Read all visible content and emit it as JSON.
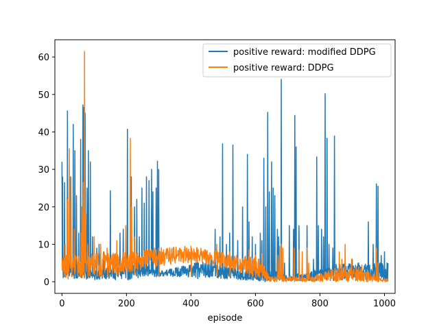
{
  "chart_data": {
    "type": "line",
    "title": "",
    "xlabel": "episode",
    "ylabel": "",
    "xlim": [
      -22,
      1033
    ],
    "ylim": [
      -3.1,
      64.6
    ],
    "xticks": [
      0,
      200,
      400,
      600,
      800,
      1000
    ],
    "yticks": [
      0,
      10,
      20,
      30,
      40,
      50,
      60
    ],
    "legend_position": "top-right",
    "series": [
      {
        "name": "positive reward: modified DDPG",
        "color": "#1f77b4",
        "n_points": 1012,
        "baseline_segments": [
          [
            0,
            1,
            4
          ],
          [
            100,
            0.5,
            3
          ],
          [
            210,
            0.5,
            6
          ],
          [
            310,
            1.5,
            3
          ],
          [
            460,
            1,
            6
          ],
          [
            560,
            0.5,
            3
          ],
          [
            630,
            0,
            4
          ],
          [
            690,
            0.3,
            2
          ],
          [
            760,
            0.2,
            2.5
          ],
          [
            860,
            0.3,
            5
          ],
          [
            1012,
            0.3,
            5
          ]
        ],
        "spikes": [
          [
            0,
            32
          ],
          [
            2,
            28
          ],
          [
            8,
            26.5
          ],
          [
            17,
            45.6
          ],
          [
            25,
            28
          ],
          [
            35,
            42
          ],
          [
            40,
            35
          ],
          [
            45,
            23
          ],
          [
            52,
            13
          ],
          [
            58,
            38
          ],
          [
            65,
            47.2
          ],
          [
            68,
            46.5
          ],
          [
            72,
            45
          ],
          [
            78,
            25
          ],
          [
            82,
            35
          ],
          [
            88,
            32
          ],
          [
            95,
            12
          ],
          [
            100,
            8
          ],
          [
            108,
            9
          ],
          [
            115,
            10
          ],
          [
            130,
            8
          ],
          [
            150,
            24.3
          ],
          [
            180,
            13
          ],
          [
            190,
            14
          ],
          [
            203,
            40.7
          ],
          [
            215,
            28
          ],
          [
            225,
            20
          ],
          [
            232,
            22
          ],
          [
            240,
            12
          ],
          [
            248,
            25
          ],
          [
            255,
            21
          ],
          [
            262,
            28
          ],
          [
            270,
            27
          ],
          [
            278,
            30
          ],
          [
            282,
            24
          ],
          [
            292,
            25
          ],
          [
            296,
            32.2
          ],
          [
            300,
            30
          ],
          [
            420,
            5.5
          ],
          [
            475,
            14
          ],
          [
            490,
            12
          ],
          [
            498,
            36.8
          ],
          [
            510,
            10
          ],
          [
            520,
            13
          ],
          [
            530,
            36.5
          ],
          [
            545,
            11
          ],
          [
            560,
            20
          ],
          [
            575,
            34
          ],
          [
            580,
            16
          ],
          [
            590,
            12
          ],
          [
            600,
            10
          ],
          [
            615,
            13
          ],
          [
            620,
            11
          ],
          [
            626,
            33
          ],
          [
            632,
            20
          ],
          [
            638,
            45.2
          ],
          [
            643,
            24
          ],
          [
            650,
            32
          ],
          [
            655,
            25
          ],
          [
            660,
            23
          ],
          [
            668,
            14
          ],
          [
            672,
            12
          ],
          [
            680,
            54
          ],
          [
            690,
            5
          ],
          [
            705,
            15
          ],
          [
            718,
            14
          ],
          [
            722,
            44.4
          ],
          [
            726,
            36
          ],
          [
            735,
            15
          ],
          [
            760,
            15
          ],
          [
            780,
            6
          ],
          [
            790,
            33.3
          ],
          [
            795,
            15
          ],
          [
            805,
            14
          ],
          [
            811,
            12
          ],
          [
            816,
            50.2
          ],
          [
            822,
            38.3
          ],
          [
            828,
            10
          ],
          [
            840,
            9
          ],
          [
            845,
            38.9
          ],
          [
            900,
            6
          ],
          [
            920,
            5
          ],
          [
            950,
            16
          ],
          [
            965,
            10
          ],
          [
            975,
            26.1
          ],
          [
            980,
            25.5
          ],
          [
            990,
            7
          ],
          [
            1000,
            8
          ],
          [
            1008,
            5
          ]
        ]
      },
      {
        "name": "positive reward: DDPG",
        "color": "#ff7f0e",
        "n_points": 1012,
        "baseline_segments": [
          [
            0,
            0.5,
            7
          ],
          [
            100,
            1,
            8
          ],
          [
            200,
            2,
            8
          ],
          [
            280,
            4,
            9
          ],
          [
            380,
            5,
            9.5
          ],
          [
            430,
            5,
            9
          ],
          [
            490,
            4,
            8
          ],
          [
            560,
            2,
            7
          ],
          [
            615,
            1,
            6.5
          ],
          [
            640,
            0,
            2
          ],
          [
            700,
            0,
            1.5
          ],
          [
            760,
            0,
            1
          ],
          [
            860,
            0,
            4
          ],
          [
            930,
            0,
            4
          ],
          [
            990,
            0,
            0.8
          ],
          [
            1012,
            0,
            0.8
          ]
        ],
        "spikes": [
          [
            10,
            10
          ],
          [
            18,
            22
          ],
          [
            23,
            35.5
          ],
          [
            28,
            28
          ],
          [
            38,
            14
          ],
          [
            60,
            13
          ],
          [
            62,
            20
          ],
          [
            66,
            26.5
          ],
          [
            70,
            61.5
          ],
          [
            74,
            18
          ],
          [
            80,
            10
          ],
          [
            100,
            12
          ],
          [
            120,
            10
          ],
          [
            140,
            9
          ],
          [
            170,
            11
          ],
          [
            198,
            15
          ],
          [
            212,
            38.3
          ],
          [
            216,
            20
          ],
          [
            225,
            12
          ],
          [
            300,
            9
          ],
          [
            400,
            9.5
          ],
          [
            480,
            10
          ],
          [
            520,
            8
          ],
          [
            580,
            8.5
          ],
          [
            600,
            7
          ],
          [
            620,
            7.5
          ],
          [
            670,
            7
          ],
          [
            675,
            9.5
          ],
          [
            680,
            10
          ],
          [
            685,
            9
          ],
          [
            720,
            9
          ],
          [
            735,
            8.5
          ],
          [
            745,
            8
          ],
          [
            760,
            9
          ],
          [
            765,
            5
          ],
          [
            860,
            8
          ],
          [
            868,
            6
          ],
          [
            878,
            10
          ],
          [
            898,
            6
          ],
          [
            920,
            4
          ],
          [
            930,
            4.5
          ],
          [
            935,
            1
          ],
          [
            975,
            9
          ],
          [
            980,
            5
          ]
        ]
      }
    ]
  }
}
